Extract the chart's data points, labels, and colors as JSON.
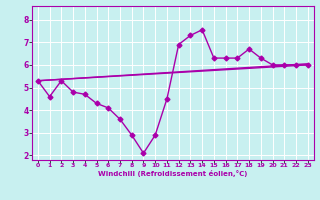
{
  "xlabel": "Windchill (Refroidissement éolien,°C)",
  "background_color": "#c8f0f0",
  "line_color": "#aa00aa",
  "xlim": [
    -0.5,
    23.5
  ],
  "ylim": [
    1.8,
    8.6
  ],
  "xticks": [
    0,
    1,
    2,
    3,
    4,
    5,
    6,
    7,
    8,
    9,
    10,
    11,
    12,
    13,
    14,
    15,
    16,
    17,
    18,
    19,
    20,
    21,
    22,
    23
  ],
  "yticks": [
    2,
    3,
    4,
    5,
    6,
    7,
    8
  ],
  "line1_x": [
    0,
    1,
    2,
    3,
    4,
    5,
    6,
    7,
    8,
    9,
    10,
    11,
    12,
    13,
    14,
    15,
    16,
    17,
    18,
    19,
    20,
    21,
    22,
    23
  ],
  "line1_y": [
    5.3,
    4.6,
    5.3,
    4.8,
    4.7,
    4.3,
    4.1,
    3.6,
    2.9,
    2.1,
    2.9,
    4.5,
    6.9,
    7.3,
    7.55,
    6.3,
    6.3,
    6.3,
    6.7,
    6.3,
    6.0,
    6.0,
    6.0,
    6.0
  ],
  "line2_x": [
    0,
    23
  ],
  "line2_y": [
    5.3,
    6.0
  ],
  "line3_x": [
    0,
    23
  ],
  "line3_y": [
    5.3,
    6.05
  ]
}
